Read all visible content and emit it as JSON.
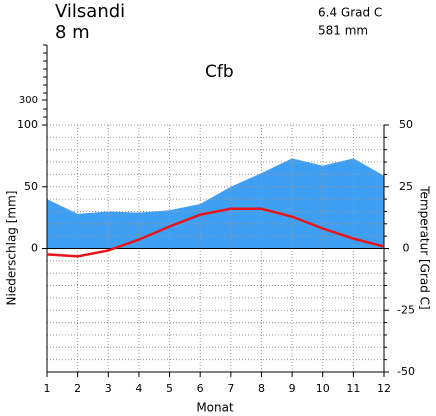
{
  "chart_data": {
    "type": "climate",
    "title": "Vilsandi",
    "subtitle": "8 m",
    "annotations": [
      "6.4 Grad C",
      "581 mm",
      "Cfb"
    ],
    "xlabel": "Monat",
    "ylabel": "Niederschlag [mm]",
    "y2label": "Temperatur [Grad C]",
    "x": [
      1,
      2,
      3,
      4,
      5,
      6,
      7,
      8,
      9,
      10,
      11,
      12
    ],
    "xlim": [
      1,
      12
    ],
    "xticks": [
      1,
      2,
      3,
      4,
      5,
      6,
      7,
      8,
      9,
      10,
      11,
      12
    ],
    "ylim": [
      -100,
      100
    ],
    "yticks": [
      0,
      50,
      100
    ],
    "upper_ylim": [
      100,
      300
    ],
    "upper_yticks": [
      300
    ],
    "y2lim": [
      -50,
      50
    ],
    "y2ticks": [
      -50,
      -25,
      0,
      25,
      50
    ],
    "y2minor": [
      -45,
      -40,
      -35,
      -30,
      -20,
      -15,
      -10,
      -5,
      5,
      10,
      15,
      20,
      30,
      35,
      40,
      45
    ],
    "grid": true,
    "series": [
      {
        "name": "Niederschlag",
        "color": "#3f9ff2",
        "axis": "y",
        "values": [
          40,
          28,
          30,
          29,
          31,
          36,
          50,
          61,
          73,
          67,
          73,
          59
        ]
      },
      {
        "name": "Temperatur",
        "color": "#e8141a",
        "axis": "y2",
        "values": [
          -2.4,
          -3.2,
          -0.8,
          3.6,
          8.9,
          13.7,
          16.1,
          16.1,
          12.9,
          8.1,
          4.0,
          0.8
        ]
      }
    ]
  }
}
